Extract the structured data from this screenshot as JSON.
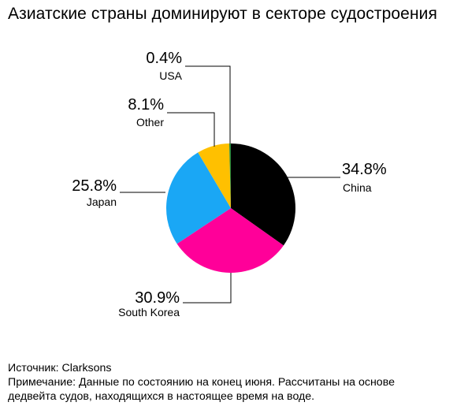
{
  "title": "Азиатские страны доминируют в секторе судостроения",
  "chart_data": {
    "type": "pie",
    "title": "Азиатские страны доминируют в секторе судостроения",
    "unit": "%",
    "slices": [
      {
        "label": "China",
        "value": 34.8,
        "display": "34.8%",
        "color": "#000000"
      },
      {
        "label": "South Korea",
        "value": 30.9,
        "display": "30.9%",
        "color": "#ff0099"
      },
      {
        "label": "Japan",
        "value": 25.8,
        "display": "25.8%",
        "color": "#1aa7f5"
      },
      {
        "label": "Other",
        "value": 8.1,
        "display": "8.1%",
        "color": "#ffc000"
      },
      {
        "label": "USA",
        "value": 0.4,
        "display": "0.4%",
        "color": "#2a8a3a"
      }
    ],
    "start": "12 o'clock",
    "direction": "clockwise",
    "legend": "none (leader-line labels)"
  },
  "footer": {
    "source": "Источник: Clarksons",
    "note_line1": "Примечание: Данные по состоянию на конец июня. Рассчитаны на основе",
    "note_line2": "дедвейта судов, находящихся в настоящее время на воде."
  }
}
